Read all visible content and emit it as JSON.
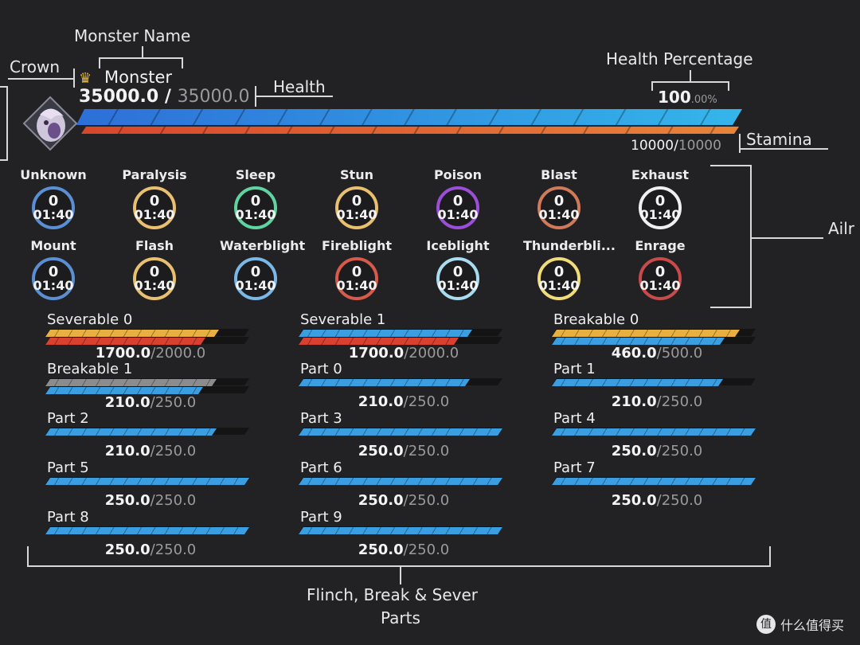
{
  "annotations": {
    "monster_name": "Monster Name",
    "crown": "Crown",
    "health": "Health",
    "health_percentage": "Health Percentage",
    "stamina": "Stamina",
    "ailments": "Ailr",
    "parts_line1": "Flinch, Break & Sever",
    "parts_line2": "Parts"
  },
  "monster": {
    "name": "Monster",
    "health_current": "35000.0",
    "health_sep": " / ",
    "health_max": "35000.0",
    "health_fraction": 1.0,
    "health_pct_main": "100",
    "health_pct_decimal": ".00%",
    "stamina_current": "10000",
    "stamina_max": "10000",
    "stamina_fraction": 1.0
  },
  "colors": {
    "health_bar": "#2ea3e6",
    "stamina_bar": "#e8672c"
  },
  "ailments": [
    {
      "label": "Unknown",
      "value": "0",
      "timer": "01:40",
      "color": "#5b8fd3"
    },
    {
      "label": "Paralysis",
      "value": "0",
      "timer": "01:40",
      "color": "#e8c070"
    },
    {
      "label": "Sleep",
      "value": "0",
      "timer": "01:40",
      "color": "#5fd3a0"
    },
    {
      "label": "Stun",
      "value": "0",
      "timer": "01:40",
      "color": "#e8c070"
    },
    {
      "label": "Poison",
      "value": "0",
      "timer": "01:40",
      "color": "#9b4fd8"
    },
    {
      "label": "Blast",
      "value": "0",
      "timer": "01:40",
      "color": "#d07a5a"
    },
    {
      "label": "Exhaust",
      "value": "0",
      "timer": "01:40",
      "color": "#f0f0f0"
    },
    {
      "label": "Mount",
      "value": "0",
      "timer": "01:40",
      "color": "#5b8fd3"
    },
    {
      "label": "Flash",
      "value": "0",
      "timer": "01:40",
      "color": "#e8c070"
    },
    {
      "label": "Waterblight",
      "value": "0",
      "timer": "01:40",
      "color": "#7ab8e8"
    },
    {
      "label": "Fireblight",
      "value": "0",
      "timer": "01:40",
      "color": "#d85a4a"
    },
    {
      "label": "Iceblight",
      "value": "0",
      "timer": "01:40",
      "color": "#a8dcf0"
    },
    {
      "label": "Thunderbli...",
      "value": "0",
      "timer": "01:40",
      "color": "#f0dc78"
    },
    {
      "label": "Enrage",
      "value": "0",
      "timer": "01:40",
      "color": "#c84a4a"
    }
  ],
  "parts": [
    {
      "name": "Severable 0",
      "current": "1700.0",
      "max": "/2000.0",
      "fraction": 0.85,
      "fill": "#e8b040",
      "fill2": "#d84030"
    },
    {
      "name": "Severable 1",
      "current": "1700.0",
      "max": "/2000.0",
      "fraction": 0.85,
      "fill": "#3a9ee0",
      "fill2": "#d84030"
    },
    {
      "name": "Breakable 0",
      "current": "460.0",
      "max": "/500.0",
      "fraction": 0.92,
      "fill": "#e8b040",
      "fill2": "#3a9ee0"
    },
    {
      "name": "Breakable 1",
      "current": "210.0",
      "max": "/250.0",
      "fraction": 0.84,
      "fill": "#8c8c8c",
      "fill2": "#3a9ee0"
    },
    {
      "name": "Part 0",
      "current": "210.0",
      "max": "/250.0",
      "fraction": 0.84,
      "fill": "#3a9ee0",
      "fill2": ""
    },
    {
      "name": "Part 1",
      "current": "210.0",
      "max": "/250.0",
      "fraction": 0.84,
      "fill": "#3a9ee0",
      "fill2": ""
    },
    {
      "name": "Part 2",
      "current": "210.0",
      "max": "/250.0",
      "fraction": 0.84,
      "fill": "#3a9ee0",
      "fill2": ""
    },
    {
      "name": "Part 3",
      "current": "250.0",
      "max": "/250.0",
      "fraction": 1.0,
      "fill": "#3a9ee0",
      "fill2": ""
    },
    {
      "name": "Part 4",
      "current": "250.0",
      "max": "/250.0",
      "fraction": 1.0,
      "fill": "#3a9ee0",
      "fill2": ""
    },
    {
      "name": "Part 5",
      "current": "250.0",
      "max": "/250.0",
      "fraction": 1.0,
      "fill": "#3a9ee0",
      "fill2": ""
    },
    {
      "name": "Part 6",
      "current": "250.0",
      "max": "/250.0",
      "fraction": 1.0,
      "fill": "#3a9ee0",
      "fill2": ""
    },
    {
      "name": "Part 7",
      "current": "250.0",
      "max": "/250.0",
      "fraction": 1.0,
      "fill": "#3a9ee0",
      "fill2": ""
    },
    {
      "name": "Part 8",
      "current": "250.0",
      "max": "/250.0",
      "fraction": 1.0,
      "fill": "#3a9ee0",
      "fill2": ""
    },
    {
      "name": "Part 9",
      "current": "250.0",
      "max": "/250.0",
      "fraction": 1.0,
      "fill": "#3a9ee0",
      "fill2": ""
    }
  ],
  "watermark": {
    "icon": "值",
    "text": "什么值得买"
  }
}
